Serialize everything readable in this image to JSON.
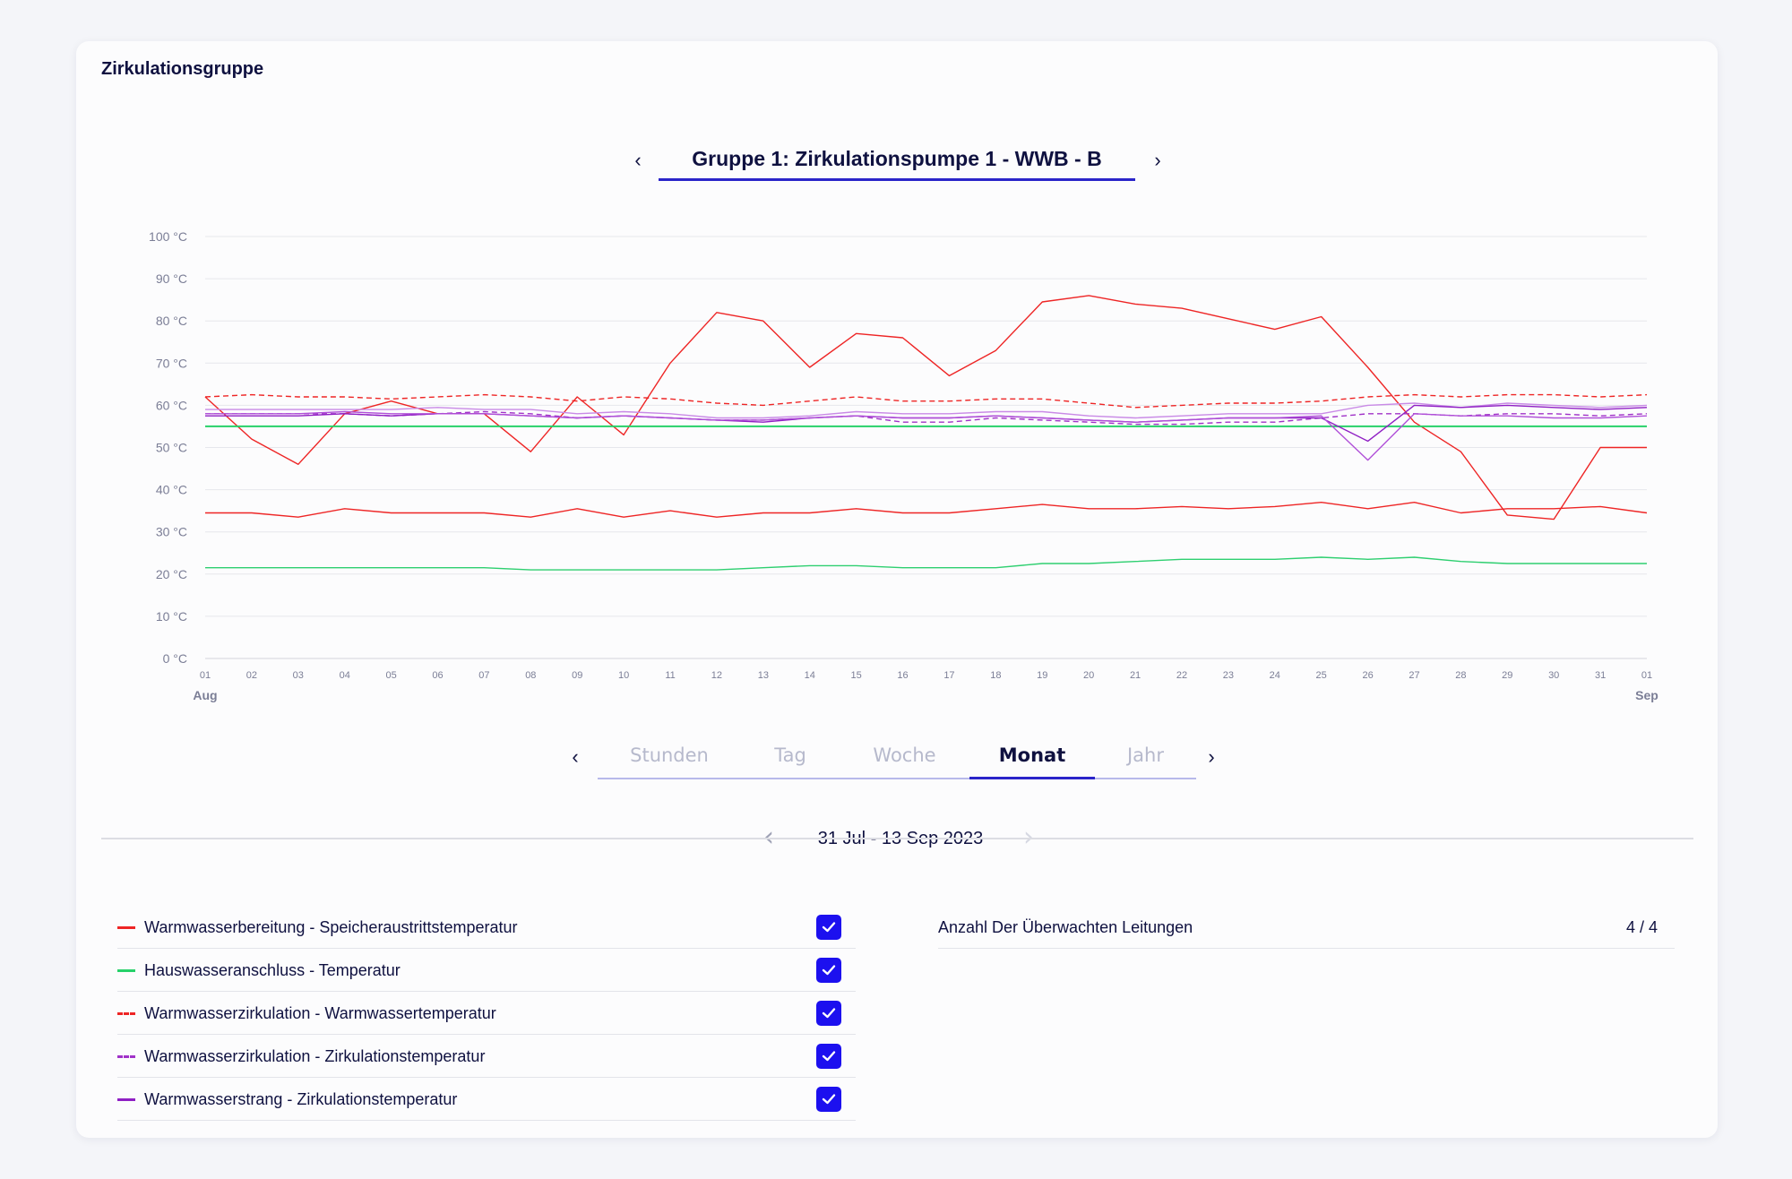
{
  "card": {
    "title": "Zirkulationsgruppe"
  },
  "group_selector": {
    "name": "Gruppe 1: Zirkulationspumpe 1 - WWB - B",
    "prev": "‹",
    "next": "›"
  },
  "period": {
    "prev": "‹",
    "next": "›",
    "tabs": [
      "Stunden",
      "Tag",
      "Woche",
      "Monat",
      "Jahr"
    ],
    "active": "Monat"
  },
  "date_range": {
    "text": "31 Jul - 13 Sep 2023",
    "prev": "‹",
    "next": "›"
  },
  "legend": [
    {
      "label": "Warmwasserbereitung - Speicheraustrittstemperatur",
      "color": "#ee2525",
      "dashed": false,
      "checked": true
    },
    {
      "label": "Hauswasseranschluss - Temperatur",
      "color": "#27d16a",
      "dashed": false,
      "checked": true
    },
    {
      "label": "Warmwasserzirkulation - Warmwassertemperatur",
      "color": "#ee2525",
      "dashed": true,
      "checked": true
    },
    {
      "label": "Warmwasserzirkulation - Zirkulationstemperatur",
      "color": "#a032c8",
      "dashed": true,
      "checked": true
    },
    {
      "label": "Warmwasserstrang - Zirkulationstemperatur",
      "color": "#8f1fc4",
      "dashed": false,
      "checked": true
    }
  ],
  "monitor": {
    "label": "Anzahl Der Überwachten Leitungen",
    "value": "4 / 4"
  },
  "chart_data": {
    "type": "line",
    "y_ticks": [
      "0 °C",
      "10 °C",
      "20 °C",
      "30 °C",
      "40 °C",
      "50 °C",
      "60 °C",
      "70 °C",
      "80 °C",
      "90 °C",
      "100 °C"
    ],
    "ylim": [
      0,
      100
    ],
    "x": [
      "01",
      "02",
      "03",
      "04",
      "05",
      "06",
      "07",
      "08",
      "09",
      "10",
      "11",
      "12",
      "13",
      "14",
      "15",
      "16",
      "17",
      "18",
      "19",
      "20",
      "21",
      "22",
      "23",
      "24",
      "25",
      "26",
      "27",
      "28",
      "29",
      "30",
      "31",
      "01"
    ],
    "x_month_labels": [
      "Aug",
      "Sep"
    ],
    "grid": true,
    "series": [
      {
        "color": "#ee2525",
        "dashed": false,
        "width": 1.4,
        "values": [
          62,
          52,
          46,
          58,
          61,
          58,
          58,
          49,
          62,
          53,
          70,
          82,
          80,
          69,
          77,
          76,
          67,
          73,
          84.5,
          86,
          84,
          83,
          80.5,
          78,
          81,
          69,
          56,
          49,
          34,
          33,
          50,
          50
        ]
      },
      {
        "color": "#ee2525",
        "dashed": false,
        "width": 1.4,
        "values": [
          34.5,
          34.5,
          33.5,
          35.5,
          34.5,
          34.5,
          34.5,
          33.5,
          35.5,
          33.5,
          35,
          33.5,
          34.5,
          34.5,
          35.5,
          34.5,
          34.5,
          35.5,
          36.5,
          35.5,
          35.5,
          36,
          35.5,
          36,
          37,
          35.5,
          37,
          34.5,
          35.5,
          35.5,
          36,
          34.5
        ]
      },
      {
        "color": "#27d16a",
        "dashed": false,
        "width": 2,
        "values": [
          55,
          55,
          55,
          55,
          55,
          55,
          55,
          55,
          55,
          55,
          55,
          55,
          55,
          55,
          55,
          55,
          55,
          55,
          55,
          55,
          55,
          55,
          55,
          55,
          55,
          55,
          55,
          55,
          55,
          55,
          55,
          55
        ]
      },
      {
        "color": "#2ecf70",
        "dashed": false,
        "width": 1.4,
        "values": [
          21.5,
          21.5,
          21.5,
          21.5,
          21.5,
          21.5,
          21.5,
          21,
          21,
          21,
          21,
          21,
          21.5,
          22,
          22,
          21.5,
          21.5,
          21.5,
          22.5,
          22.5,
          23,
          23.5,
          23.5,
          23.5,
          24,
          23.5,
          24,
          23,
          22.5,
          22.5,
          22.5,
          22.5
        ]
      },
      {
        "color": "#ee2525",
        "dashed": true,
        "width": 1.4,
        "values": [
          62,
          62.5,
          62,
          62,
          61.5,
          62,
          62.5,
          62,
          61,
          62,
          61.5,
          60.5,
          60,
          61,
          62,
          61,
          61,
          61.5,
          61.5,
          60.5,
          59.5,
          60,
          60.5,
          60.5,
          61,
          62,
          62.5,
          62,
          62.5,
          62.5,
          62,
          62.5
        ]
      },
      {
        "color": "#a032c8",
        "dashed": true,
        "width": 1.4,
        "values": [
          58,
          58,
          58,
          58,
          57.5,
          58,
          58.5,
          58,
          57,
          57.5,
          57,
          56.5,
          56.5,
          57,
          57.5,
          56,
          56,
          57,
          56.5,
          56,
          55.5,
          55.5,
          56,
          56,
          57,
          58,
          58,
          57.5,
          58,
          58,
          57.5,
          58
        ]
      },
      {
        "color": "#c98ae6",
        "dashed": false,
        "width": 1.4,
        "values": [
          59,
          59,
          59,
          59,
          59,
          59.5,
          59,
          59,
          58,
          58.5,
          58,
          57,
          57,
          57.5,
          58.5,
          58,
          58,
          58.5,
          58.5,
          57.5,
          57,
          57.5,
          58,
          58,
          58,
          60,
          60.5,
          59.5,
          60.5,
          60,
          59.5,
          60
        ]
      },
      {
        "color": "#8f1fc4",
        "dashed": false,
        "width": 1.4,
        "values": [
          57.5,
          57.5,
          57.5,
          58,
          57.5,
          58,
          58,
          57.5,
          57,
          57.5,
          57,
          56.5,
          56,
          57,
          57.5,
          57,
          57,
          57.5,
          57,
          56.5,
          56,
          56.5,
          57,
          57,
          57,
          51.5,
          60,
          59.5,
          60,
          59.5,
          59,
          59.5
        ]
      },
      {
        "color": "#b050d8",
        "dashed": false,
        "width": 1.4,
        "values": [
          58,
          58,
          58,
          58.5,
          58,
          58,
          58,
          57.5,
          57,
          57.5,
          57,
          56.5,
          56.5,
          57,
          57.5,
          57,
          57,
          57.5,
          57,
          56.5,
          56,
          56.5,
          57,
          57,
          57.5,
          47,
          58,
          57.5,
          57.5,
          57,
          57,
          57.5
        ]
      }
    ]
  }
}
